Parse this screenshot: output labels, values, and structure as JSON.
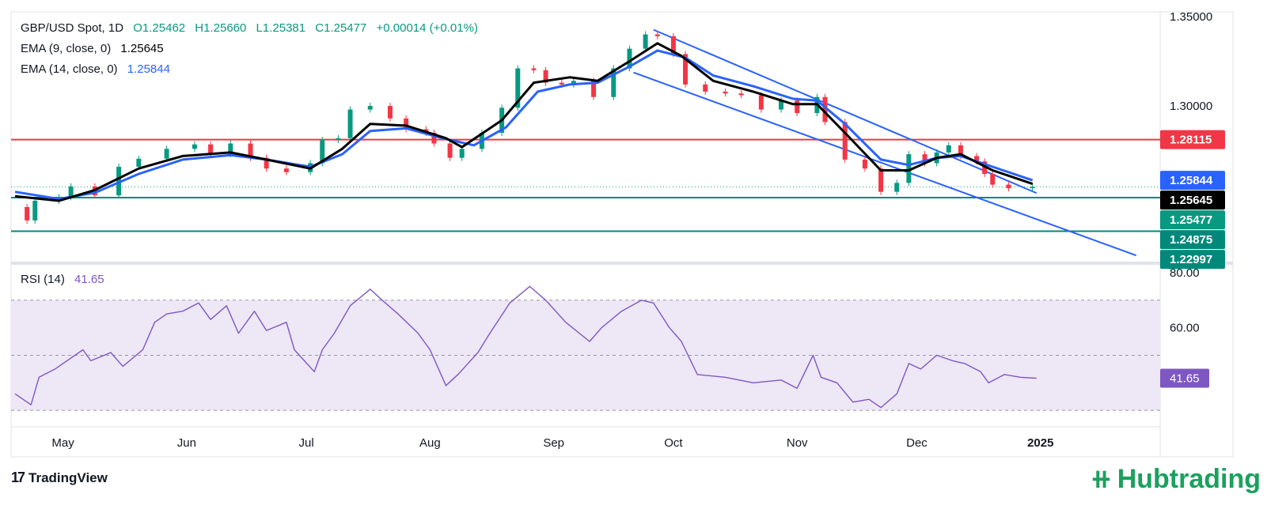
{
  "header": {
    "symbol": "GBP/USD Spot, 1D",
    "open": "O1.25462",
    "high": "H1.25660",
    "low": "L1.25381",
    "close": "C1.25477",
    "change": "+0.00014 (+0.01%)",
    "ema9_label": "EMA (9, close, 0)",
    "ema9_value": "1.25645",
    "ema14_label": "EMA (14, close, 0)",
    "ema14_value": "1.25844",
    "rsi_label": "RSI (14)",
    "rsi_value": "41.65"
  },
  "colors": {
    "up": "#089981",
    "down": "#f23645",
    "ema9": "#000000",
    "ema14": "#2962ff",
    "resistance": "#f23645",
    "support": "#00897b",
    "channel": "#2962ff",
    "rsi": "#7e57c2",
    "rsi_band": "#ede7f6",
    "brand": "#1aa15e"
  },
  "footer": {
    "tradingview": "TradingView",
    "brand": "Hubtrading"
  },
  "chart_data": {
    "type": "line",
    "price_axis": {
      "ticks": [
        "1.35000",
        "1.30000"
      ],
      "tick_values": [
        1.35,
        1.3
      ],
      "ylim": [
        1.2134,
        1.3526
      ]
    },
    "price_labels": [
      {
        "text": "1.28115",
        "value": 1.28115,
        "color": "#f23645"
      },
      {
        "text": "1.25844",
        "value": 1.25844,
        "color": "#2962ff"
      },
      {
        "text": "1.25645",
        "value": 1.25645,
        "color": "#000000"
      },
      {
        "text": "1.25477",
        "value": 1.25477,
        "color": "#089981"
      },
      {
        "text": "1.24875",
        "value": 1.24875,
        "color": "#00897b"
      },
      {
        "text": "1.22997",
        "value": 1.22997,
        "color": "#00897b"
      }
    ],
    "horizontal_levels": [
      {
        "value": 1.28115,
        "role": "resistance"
      },
      {
        "value": 1.24875,
        "role": "support"
      },
      {
        "value": 1.22997,
        "role": "support"
      }
    ],
    "channel_lines": [
      {
        "from": [
          "2024-09-26",
          1.3426
        ],
        "to": [
          "2024-12-31",
          1.2513
        ]
      },
      {
        "from": [
          "2024-09-21",
          1.3187
        ],
        "to": [
          "2025-01-25",
          1.2164
        ]
      }
    ],
    "x_axis": {
      "labels": [
        "May",
        "Jun",
        "Jul",
        "Aug",
        "Sep",
        "Oct",
        "Nov",
        "Dec",
        "2025"
      ],
      "label_dates": [
        "2024-05-01",
        "2024-06-01",
        "2024-07-01",
        "2024-08-01",
        "2024-09-01",
        "2024-10-01",
        "2024-11-01",
        "2024-12-01",
        "2025-01-01"
      ],
      "xlim": [
        "2024-04-18",
        "2025-01-31"
      ]
    },
    "close_path": [
      [
        "2024-04-19",
        1.2435
      ],
      [
        "2024-04-22",
        1.236
      ],
      [
        "2024-04-24",
        1.247
      ],
      [
        "2024-04-30",
        1.249
      ],
      [
        "2024-05-03",
        1.255
      ],
      [
        "2024-05-09",
        1.25
      ],
      [
        "2024-05-15",
        1.266
      ],
      [
        "2024-05-20",
        1.2705
      ],
      [
        "2024-05-27",
        1.276
      ],
      [
        "2024-06-03",
        1.2785
      ],
      [
        "2024-06-07",
        1.273
      ],
      [
        "2024-06-12",
        1.279
      ],
      [
        "2024-06-17",
        1.271
      ],
      [
        "2024-06-21",
        1.265
      ],
      [
        "2024-06-26",
        1.263
      ],
      [
        "2024-07-02",
        1.268
      ],
      [
        "2024-07-05",
        1.281
      ],
      [
        "2024-07-09",
        1.282
      ],
      [
        "2024-07-12",
        1.298
      ],
      [
        "2024-07-17",
        1.3
      ],
      [
        "2024-07-22",
        1.293
      ],
      [
        "2024-07-26",
        1.287
      ],
      [
        "2024-07-31",
        1.285
      ],
      [
        "2024-08-02",
        1.279
      ],
      [
        "2024-08-06",
        1.271
      ],
      [
        "2024-08-09",
        1.276
      ],
      [
        "2024-08-14",
        1.285
      ],
      [
        "2024-08-19",
        1.299
      ],
      [
        "2024-08-23",
        1.321
      ],
      [
        "2024-08-27",
        1.32
      ],
      [
        "2024-08-30",
        1.313
      ],
      [
        "2024-09-03",
        1.312
      ],
      [
        "2024-09-06",
        1.314
      ],
      [
        "2024-09-11",
        1.305
      ],
      [
        "2024-09-16",
        1.321
      ],
      [
        "2024-09-20",
        1.332
      ],
      [
        "2024-09-24",
        1.34
      ],
      [
        "2024-09-27",
        1.339
      ],
      [
        "2024-10-01",
        1.329
      ],
      [
        "2024-10-04",
        1.312
      ],
      [
        "2024-10-09",
        1.308
      ],
      [
        "2024-10-14",
        1.307
      ],
      [
        "2024-10-18",
        1.306
      ],
      [
        "2024-10-23",
        1.298
      ],
      [
        "2024-10-28",
        1.303
      ],
      [
        "2024-11-01",
        1.296
      ],
      [
        "2024-11-06",
        1.305
      ],
      [
        "2024-11-08",
        1.291
      ],
      [
        "2024-11-13",
        1.27
      ],
      [
        "2024-11-18",
        1.265
      ],
      [
        "2024-11-22",
        1.252
      ],
      [
        "2024-11-26",
        1.257
      ],
      [
        "2024-11-29",
        1.273
      ],
      [
        "2024-12-03",
        1.268
      ],
      [
        "2024-12-06",
        1.274
      ],
      [
        "2024-12-09",
        1.278
      ],
      [
        "2024-12-12",
        1.272
      ],
      [
        "2024-12-16",
        1.269
      ],
      [
        "2024-12-18",
        1.262
      ],
      [
        "2024-12-20",
        1.256
      ],
      [
        "2024-12-24",
        1.254
      ],
      [
        "2024-12-30",
        1.2548
      ]
    ],
    "ema9_path": [
      [
        "2024-04-19",
        1.2495
      ],
      [
        "2024-04-30",
        1.247
      ],
      [
        "2024-05-09",
        1.253
      ],
      [
        "2024-05-20",
        1.265
      ],
      [
        "2024-05-31",
        1.272
      ],
      [
        "2024-06-12",
        1.274
      ],
      [
        "2024-06-21",
        1.27
      ],
      [
        "2024-07-02",
        1.265
      ],
      [
        "2024-07-10",
        1.276
      ],
      [
        "2024-07-17",
        1.29
      ],
      [
        "2024-07-26",
        1.289
      ],
      [
        "2024-08-05",
        1.282
      ],
      [
        "2024-08-09",
        1.277
      ],
      [
        "2024-08-19",
        1.292
      ],
      [
        "2024-08-27",
        1.313
      ],
      [
        "2024-09-05",
        1.316
      ],
      [
        "2024-09-12",
        1.314
      ],
      [
        "2024-09-20",
        1.325
      ],
      [
        "2024-09-27",
        1.335
      ],
      [
        "2024-10-03",
        1.328
      ],
      [
        "2024-10-11",
        1.314
      ],
      [
        "2024-10-21",
        1.308
      ],
      [
        "2024-10-31",
        1.301
      ],
      [
        "2024-11-06",
        1.301
      ],
      [
        "2024-11-13",
        1.285
      ],
      [
        "2024-11-22",
        1.264
      ],
      [
        "2024-11-29",
        1.264
      ],
      [
        "2024-12-06",
        1.271
      ],
      [
        "2024-12-12",
        1.273
      ],
      [
        "2024-12-20",
        1.264
      ],
      [
        "2024-12-30",
        1.25645
      ]
    ],
    "ema14_path": [
      [
        "2024-04-19",
        1.252
      ],
      [
        "2024-04-30",
        1.248
      ],
      [
        "2024-05-09",
        1.2515
      ],
      [
        "2024-05-20",
        1.262
      ],
      [
        "2024-05-31",
        1.27
      ],
      [
        "2024-06-12",
        1.2725
      ],
      [
        "2024-06-21",
        1.27
      ],
      [
        "2024-07-02",
        1.266
      ],
      [
        "2024-07-10",
        1.273
      ],
      [
        "2024-07-17",
        1.286
      ],
      [
        "2024-07-26",
        1.2875
      ],
      [
        "2024-08-05",
        1.2815
      ],
      [
        "2024-08-12",
        1.278
      ],
      [
        "2024-08-20",
        1.288
      ],
      [
        "2024-08-28",
        1.308
      ],
      [
        "2024-09-05",
        1.312
      ],
      [
        "2024-09-12",
        1.313
      ],
      [
        "2024-09-20",
        1.322
      ],
      [
        "2024-09-27",
        1.331
      ],
      [
        "2024-10-04",
        1.327
      ],
      [
        "2024-10-11",
        1.317
      ],
      [
        "2024-10-21",
        1.311
      ],
      [
        "2024-10-31",
        1.304
      ],
      [
        "2024-11-06",
        1.303
      ],
      [
        "2024-11-13",
        1.29
      ],
      [
        "2024-11-22",
        1.27
      ],
      [
        "2024-11-29",
        1.267
      ],
      [
        "2024-12-06",
        1.271
      ],
      [
        "2024-12-12",
        1.272
      ],
      [
        "2024-12-20",
        1.266
      ],
      [
        "2024-12-30",
        1.25844
      ]
    ],
    "rsi": {
      "levels": [
        80,
        60
      ],
      "level_labels": [
        "80.00",
        "60.00"
      ],
      "band": [
        30,
        70
      ],
      "mid": 50,
      "ylim": [
        24,
        82
      ],
      "current": 41.65,
      "current_label": "41.65",
      "path": [
        [
          "2024-04-19",
          36
        ],
        [
          "2024-04-23",
          32
        ],
        [
          "2024-04-25",
          42
        ],
        [
          "2024-04-29",
          45
        ],
        [
          "2024-05-02",
          48
        ],
        [
          "2024-05-06",
          52
        ],
        [
          "2024-05-08",
          48
        ],
        [
          "2024-05-13",
          51
        ],
        [
          "2024-05-16",
          46
        ],
        [
          "2024-05-21",
          52
        ],
        [
          "2024-05-24",
          62
        ],
        [
          "2024-05-27",
          65
        ],
        [
          "2024-05-31",
          66
        ],
        [
          "2024-06-04",
          69
        ],
        [
          "2024-06-07",
          63
        ],
        [
          "2024-06-11",
          68
        ],
        [
          "2024-06-14",
          58
        ],
        [
          "2024-06-18",
          66
        ],
        [
          "2024-06-21",
          59
        ],
        [
          "2024-06-26",
          62
        ],
        [
          "2024-06-28",
          52
        ],
        [
          "2024-07-03",
          44
        ],
        [
          "2024-07-05",
          52
        ],
        [
          "2024-07-08",
          58
        ],
        [
          "2024-07-12",
          68
        ],
        [
          "2024-07-17",
          74
        ],
        [
          "2024-07-20",
          70
        ],
        [
          "2024-07-24",
          65
        ],
        [
          "2024-07-29",
          58
        ],
        [
          "2024-08-01",
          52
        ],
        [
          "2024-08-05",
          39
        ],
        [
          "2024-08-08",
          43
        ],
        [
          "2024-08-13",
          51
        ],
        [
          "2024-08-16",
          58
        ],
        [
          "2024-08-21",
          69
        ],
        [
          "2024-08-26",
          75
        ],
        [
          "2024-08-30",
          70
        ],
        [
          "2024-09-04",
          62
        ],
        [
          "2024-09-10",
          55
        ],
        [
          "2024-09-13",
          60
        ],
        [
          "2024-09-18",
          66
        ],
        [
          "2024-09-23",
          70
        ],
        [
          "2024-09-26",
          69
        ],
        [
          "2024-09-30",
          60
        ],
        [
          "2024-10-03",
          55
        ],
        [
          "2024-10-07",
          43
        ],
        [
          "2024-10-14",
          42
        ],
        [
          "2024-10-21",
          40
        ],
        [
          "2024-10-28",
          41
        ],
        [
          "2024-11-01",
          38
        ],
        [
          "2024-11-05",
          50
        ],
        [
          "2024-11-07",
          42
        ],
        [
          "2024-11-11",
          40
        ],
        [
          "2024-11-15",
          33
        ],
        [
          "2024-11-19",
          34
        ],
        [
          "2024-11-22",
          31
        ],
        [
          "2024-11-26",
          36
        ],
        [
          "2024-11-29",
          47
        ],
        [
          "2024-12-02",
          45
        ],
        [
          "2024-12-06",
          50
        ],
        [
          "2024-12-10",
          48
        ],
        [
          "2024-12-13",
          47
        ],
        [
          "2024-12-17",
          44
        ],
        [
          "2024-12-19",
          40
        ],
        [
          "2024-12-23",
          43
        ],
        [
          "2024-12-27",
          42
        ],
        [
          "2024-12-31",
          41.65
        ]
      ]
    }
  }
}
